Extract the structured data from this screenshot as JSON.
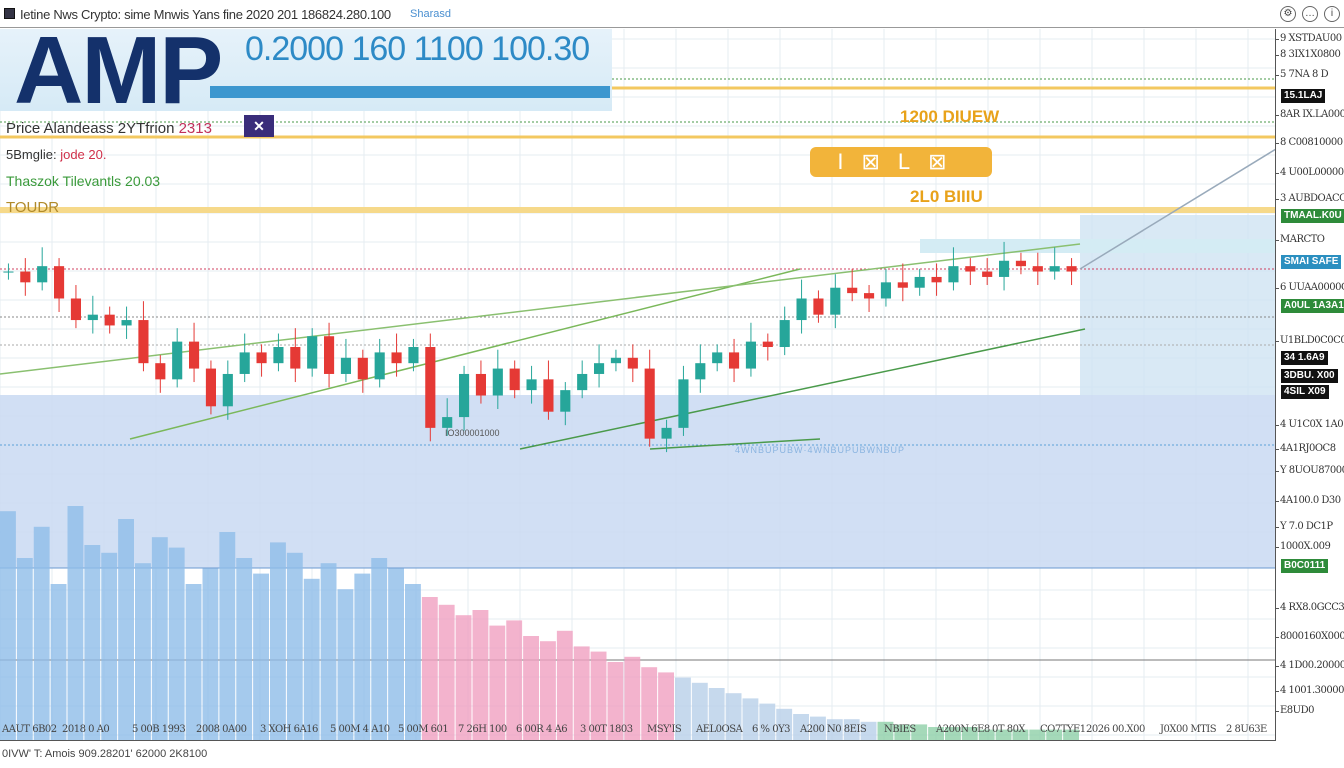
{
  "window": {
    "title": "Ietine Nws Crypto: sime Mnwis Yans fine 2020 201 186824.280.100",
    "link": "Sharasd",
    "icons": [
      "gear-icon",
      "chat-icon",
      "info-icon"
    ]
  },
  "banner": {
    "symbol": "AMP",
    "numbers": "0.2000 160 1100 100.30"
  },
  "legend": {
    "line1": "Price Alandeass 2YTfrion ",
    "line1_value": "2313",
    "close": "✕",
    "line2a": "5Bmglie: ",
    "line2b": "jode 20.",
    "line3": "Thaszok Tilevantls 20.03",
    "line4": "TOUDR"
  },
  "annotations": {
    "top": "1200 DIUEW",
    "pill": "I⊠L⊠",
    "bottom": "2L0 BIIIU",
    "low_label": "IO300001000",
    "dotted_label": "4WNBUPUBW·4WNBUPUBWNBUP"
  },
  "price_axis": [
    "9 XSTDAU00",
    "8 3IX1X0800",
    "5 7NA 8 D",
    "15.1LAJ",
    "8AR IX.LA0000",
    "8 C00810000",
    "4 U00L00000",
    "3 AUBDOACO0",
    "TMAAL.K0U",
    "MARCTO",
    "SMAI SAFE",
    "6 UUAA0000C0",
    "A0UL 1A3A1",
    "U1BLD0C0C0",
    "34 1.6A9",
    "3DBU. X00",
    "4SIL X09",
    "4 U1C0X 1A0",
    "4A1RJ0OC8",
    "Y 8UOU87000",
    "4A100.0 D30",
    "Y 7.0 DC1P",
    "1000X.009",
    "B0C0111",
    "4 RX8.0GCC30",
    "8000160X000",
    "4 1D00.20000",
    "4 1001.30000",
    "E8UD0"
  ],
  "time_axis": [
    "AAUT 6B02",
    "2018 0 A0",
    "5 00B 1993",
    "2008 0A00",
    "3 XOH 6A16",
    "5 00M 4 A10",
    "5 00M 601",
    "7 26H 100",
    "6 00R 4 A6",
    "3 00T 1803",
    "MSY'IS",
    "AEL0OSA",
    "6 % 0Y3",
    "A200 N0 8EIS",
    "NBIES",
    "A200N 6E8",
    "0T 80X",
    "CO7TYE1",
    "2026 00.X00",
    "J0X00 MTIS",
    "2 8U63E"
  ],
  "status": "0IVW' T: Amois 909.28201' 62000 2K8100",
  "colors": {
    "up": "#26a69a",
    "down": "#e53935",
    "navy": "#14316b",
    "accent": "#2d8ac6",
    "shade": "#c9d9f2",
    "orange": "#e8a21a"
  },
  "chart_data": {
    "type": "candlestick",
    "ylim": [
      0,
      100
    ],
    "closes": [
      55,
      53,
      56,
      50,
      46,
      47,
      45,
      46,
      38,
      35,
      42,
      37,
      30,
      36,
      40,
      38,
      41,
      37,
      43,
      36,
      39,
      35,
      40,
      38,
      41,
      26,
      28,
      36,
      32,
      37,
      33,
      35,
      29,
      33,
      36,
      38,
      39,
      37,
      24,
      26,
      35,
      38,
      40,
      37,
      42,
      41,
      46,
      50,
      47,
      52,
      51,
      50,
      53,
      52,
      54,
      53,
      56,
      55,
      54,
      57,
      56,
      55,
      56,
      55
    ],
    "volume_ylim": [
      0,
      100
    ],
    "volumes": [
      88,
      70,
      82,
      60,
      90,
      75,
      72,
      85,
      68,
      78,
      74,
      60,
      66,
      80,
      70,
      64,
      76,
      72,
      62,
      68,
      58,
      64,
      70,
      66,
      60,
      55,
      52,
      48,
      50,
      44,
      46,
      40,
      38,
      42,
      36,
      34,
      30,
      32,
      28,
      26,
      24,
      22,
      20,
      18,
      16,
      14,
      12,
      10,
      9,
      8,
      8,
      7,
      7,
      6,
      6,
      5,
      5,
      5,
      4,
      4,
      4,
      4,
      4,
      4
    ]
  }
}
